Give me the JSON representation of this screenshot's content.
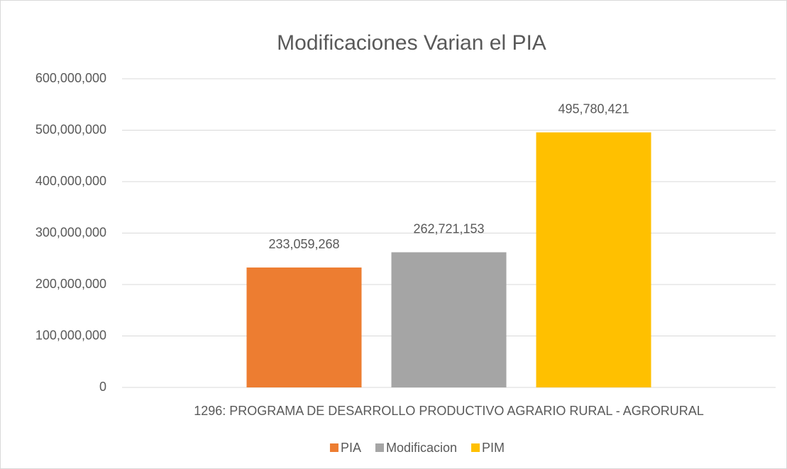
{
  "chart_data": {
    "type": "bar",
    "title": "Modificaciones Varian el PIA",
    "categories": [
      "1296: PROGRAMA DE DESARROLLO PRODUCTIVO AGRARIO RURAL - AGRORURAL"
    ],
    "series": [
      {
        "name": "PIA",
        "color": "#ed7d31",
        "values": [
          233059268
        ],
        "value_labels": [
          "233,059,268"
        ]
      },
      {
        "name": "Modificacion",
        "color": "#a5a5a5",
        "values": [
          262721153
        ],
        "value_labels": [
          "262,721,153"
        ]
      },
      {
        "name": "PIM",
        "color": "#ffc000",
        "values": [
          495780421
        ],
        "value_labels": [
          "495,780,421"
        ]
      }
    ],
    "ylim": [
      0,
      600000000
    ],
    "yticks": [
      0,
      {
        "value": 100000000,
        "label": "100,000,000"
      },
      {
        "value": 200000000,
        "label": "200,000,000"
      },
      {
        "value": 300000000,
        "label": "300,000,000"
      },
      {
        "value": 400000000,
        "label": "400,000,000"
      },
      {
        "value": 500000000,
        "label": "500,000,000"
      },
      {
        "value": 600000000,
        "label": "600,000,000"
      }
    ],
    "grid": true,
    "legend": "bottom"
  }
}
